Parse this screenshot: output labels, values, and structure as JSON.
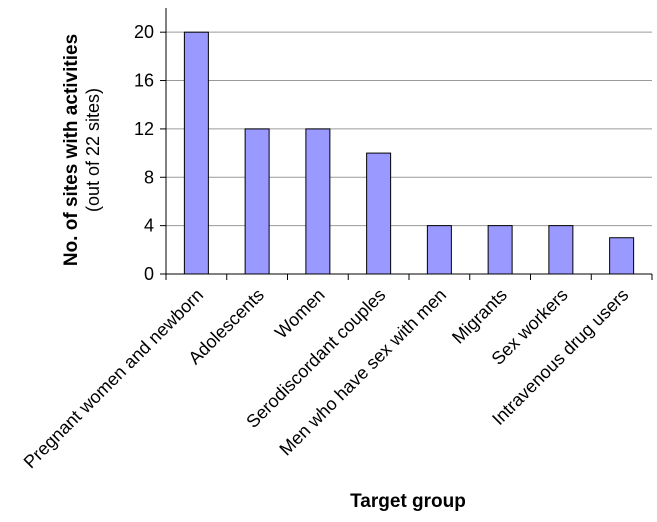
{
  "chart_data": {
    "type": "bar",
    "categories": [
      "Pregnant women and newborn",
      "Adolescents",
      "Women",
      "Serodiscordant couples",
      "Men who have sex with men",
      "Migrants",
      "Sex workers",
      "Intravenous drug users"
    ],
    "values": [
      20,
      12,
      12,
      10,
      4,
      4,
      4,
      3
    ],
    "xlabel": "Target group",
    "ylabel": "No. of sites with activities",
    "ylabel_sub": "(out of 22 sites)",
    "ylim": [
      0,
      22
    ],
    "yticks": [
      0,
      4,
      8,
      12,
      16,
      20
    ],
    "grid": true,
    "bar_color": "#9999ff"
  }
}
